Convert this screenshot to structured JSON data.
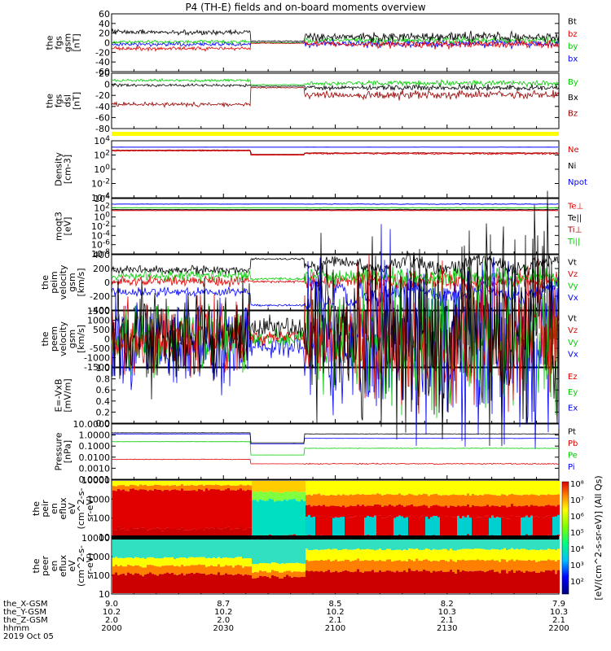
{
  "title": "P4 (TH-E) fields and on-board moments overview",
  "colors": {
    "black": "#000000",
    "red": "#e00000",
    "green": "#00cc00",
    "blue": "#0000ff",
    "darkred": "#990000",
    "yellow": "#ffff00"
  },
  "chart_data": [
    {
      "type": "line",
      "id": "fgs_gsm",
      "ylabel": [
        "the",
        "fgs",
        "gsm",
        "[nT]"
      ],
      "yticks": [
        "60",
        "40",
        "20",
        "0",
        "-20",
        "-40",
        "-60"
      ],
      "ylim": [
        -60,
        60
      ],
      "series": [
        {
          "name": "Bt",
          "color": "black"
        },
        {
          "name": "bz",
          "color": "red"
        },
        {
          "name": "by",
          "color": "green"
        },
        {
          "name": "bx",
          "color": "blue"
        }
      ]
    },
    {
      "type": "line",
      "id": "fgs_dsl",
      "ylabel": [
        "the",
        "fgs",
        "dsl",
        "[nT]"
      ],
      "yticks": [
        "20",
        "0",
        "-20",
        "-40",
        "-60",
        "-80"
      ],
      "ylim": [
        -90,
        25
      ],
      "series": [
        {
          "name": "By",
          "color": "green"
        },
        {
          "name": "Bx",
          "color": "black"
        },
        {
          "name": "Bz",
          "color": "darkred"
        }
      ]
    },
    {
      "type": "line",
      "id": "density",
      "ylabel": [
        "Density",
        "[cm-3]"
      ],
      "yticks": [
        "10^4",
        "10^2",
        "10^0",
        "10^-2",
        "10^-4"
      ],
      "log": true,
      "series": [
        {
          "name": "Ne",
          "color": "red"
        },
        {
          "name": "Ni",
          "color": "black"
        },
        {
          "name": "Npot",
          "color": "blue"
        }
      ]
    },
    {
      "type": "line",
      "id": "temperature",
      "ylabel": [
        "moqt3",
        "[eV]"
      ],
      "yticks": [
        "10^4",
        "10^2",
        "10^0",
        "10^-2",
        "10^-4",
        "10^-6",
        "10^-8"
      ],
      "log": true,
      "series": [
        {
          "name": "Te⊥",
          "color": "red"
        },
        {
          "name": "Te||",
          "color": "black"
        },
        {
          "name": "Ti⊥",
          "color": "darkred"
        },
        {
          "name": "Ti||",
          "color": "green"
        }
      ]
    },
    {
      "type": "line",
      "id": "peim_velocity",
      "ylabel": [
        "the",
        "peim",
        "velocity",
        "gsm",
        "[km/s]"
      ],
      "yticks": [
        "400",
        "200",
        "0",
        "-200",
        "-400"
      ],
      "ylim": [
        -400,
        400
      ],
      "series": [
        {
          "name": "Vt",
          "color": "black"
        },
        {
          "name": "Vz",
          "color": "red"
        },
        {
          "name": "Vy",
          "color": "green"
        },
        {
          "name": "Vx",
          "color": "blue"
        }
      ]
    },
    {
      "type": "line",
      "id": "peem_velocity",
      "ylabel": [
        "the",
        "peem",
        "velocity",
        "gsm",
        "[km/s]"
      ],
      "yticks": [
        "1500",
        "1000",
        "500",
        "0",
        "-500",
        "-1000",
        "-1500"
      ],
      "ylim": [
        -1500,
        1500
      ],
      "series": [
        {
          "name": "Vt",
          "color": "black"
        },
        {
          "name": "Vz",
          "color": "red"
        },
        {
          "name": "Vy",
          "color": "green"
        },
        {
          "name": "Vx",
          "color": "blue"
        }
      ]
    },
    {
      "type": "line",
      "id": "efield",
      "ylabel": [
        "E=-VxB",
        "[mV/m]"
      ],
      "yticks": [
        "1.0",
        "0.8",
        "0.6",
        "0.4",
        "0.2",
        "0.0"
      ],
      "ylim": [
        0,
        1
      ],
      "series": [
        {
          "name": "Ez",
          "color": "red"
        },
        {
          "name": "Ey",
          "color": "green"
        },
        {
          "name": "Ex",
          "color": "blue"
        }
      ]
    },
    {
      "type": "line",
      "id": "pressure",
      "ylabel": [
        "Pressure",
        "[nPa]"
      ],
      "yticks": [
        "10.0000",
        "1.0000",
        "0.1000",
        "0.0100",
        "0.0010",
        "0.0001"
      ],
      "log": true,
      "series": [
        {
          "name": "Pt",
          "color": "black"
        },
        {
          "name": "Pb",
          "color": "red"
        },
        {
          "name": "Pe",
          "color": "green"
        },
        {
          "name": "Pi",
          "color": "blue"
        }
      ]
    },
    {
      "type": "heatmap",
      "id": "peir_eflux",
      "ylabel": [
        "the",
        "peir",
        "en",
        "eflux",
        "eV",
        "(cm^2-s-",
        "sr-eV)"
      ],
      "yticks": [
        "10000",
        "1000",
        "100",
        "10"
      ],
      "log": true
    },
    {
      "type": "heatmap",
      "id": "peer_eflux",
      "ylabel": [
        "the",
        "peer",
        "en",
        "eflux",
        "eV",
        "(cm^2-s-",
        "sr-eV)"
      ],
      "yticks": [
        "10000",
        "1000",
        "100",
        "10"
      ],
      "log": true
    }
  ],
  "colorbar": {
    "ticks": [
      "10⁸",
      "10⁷",
      "10⁶",
      "10⁵",
      "10⁴",
      "10³",
      "10²"
    ],
    "label": "[eV/(cm^2-s-sr-eV)] (All Qs)"
  },
  "xaxis": {
    "rows": [
      {
        "label": "the_X-GSM",
        "values": [
          "9.0",
          "8.7",
          "8.5",
          "8.2",
          "7.9"
        ]
      },
      {
        "label": "the_Y-GSM",
        "values": [
          "10.2",
          "10.2",
          "10.2",
          "10.3",
          "10.3"
        ]
      },
      {
        "label": "the_Z-GSM",
        "values": [
          "2.0",
          "2.0",
          "2.1",
          "2.1",
          "2.1"
        ]
      },
      {
        "label": "hhmm",
        "values": [
          "2000",
          "2030",
          "2100",
          "2130",
          "2200"
        ]
      }
    ],
    "date": "2019 Oct 05"
  }
}
